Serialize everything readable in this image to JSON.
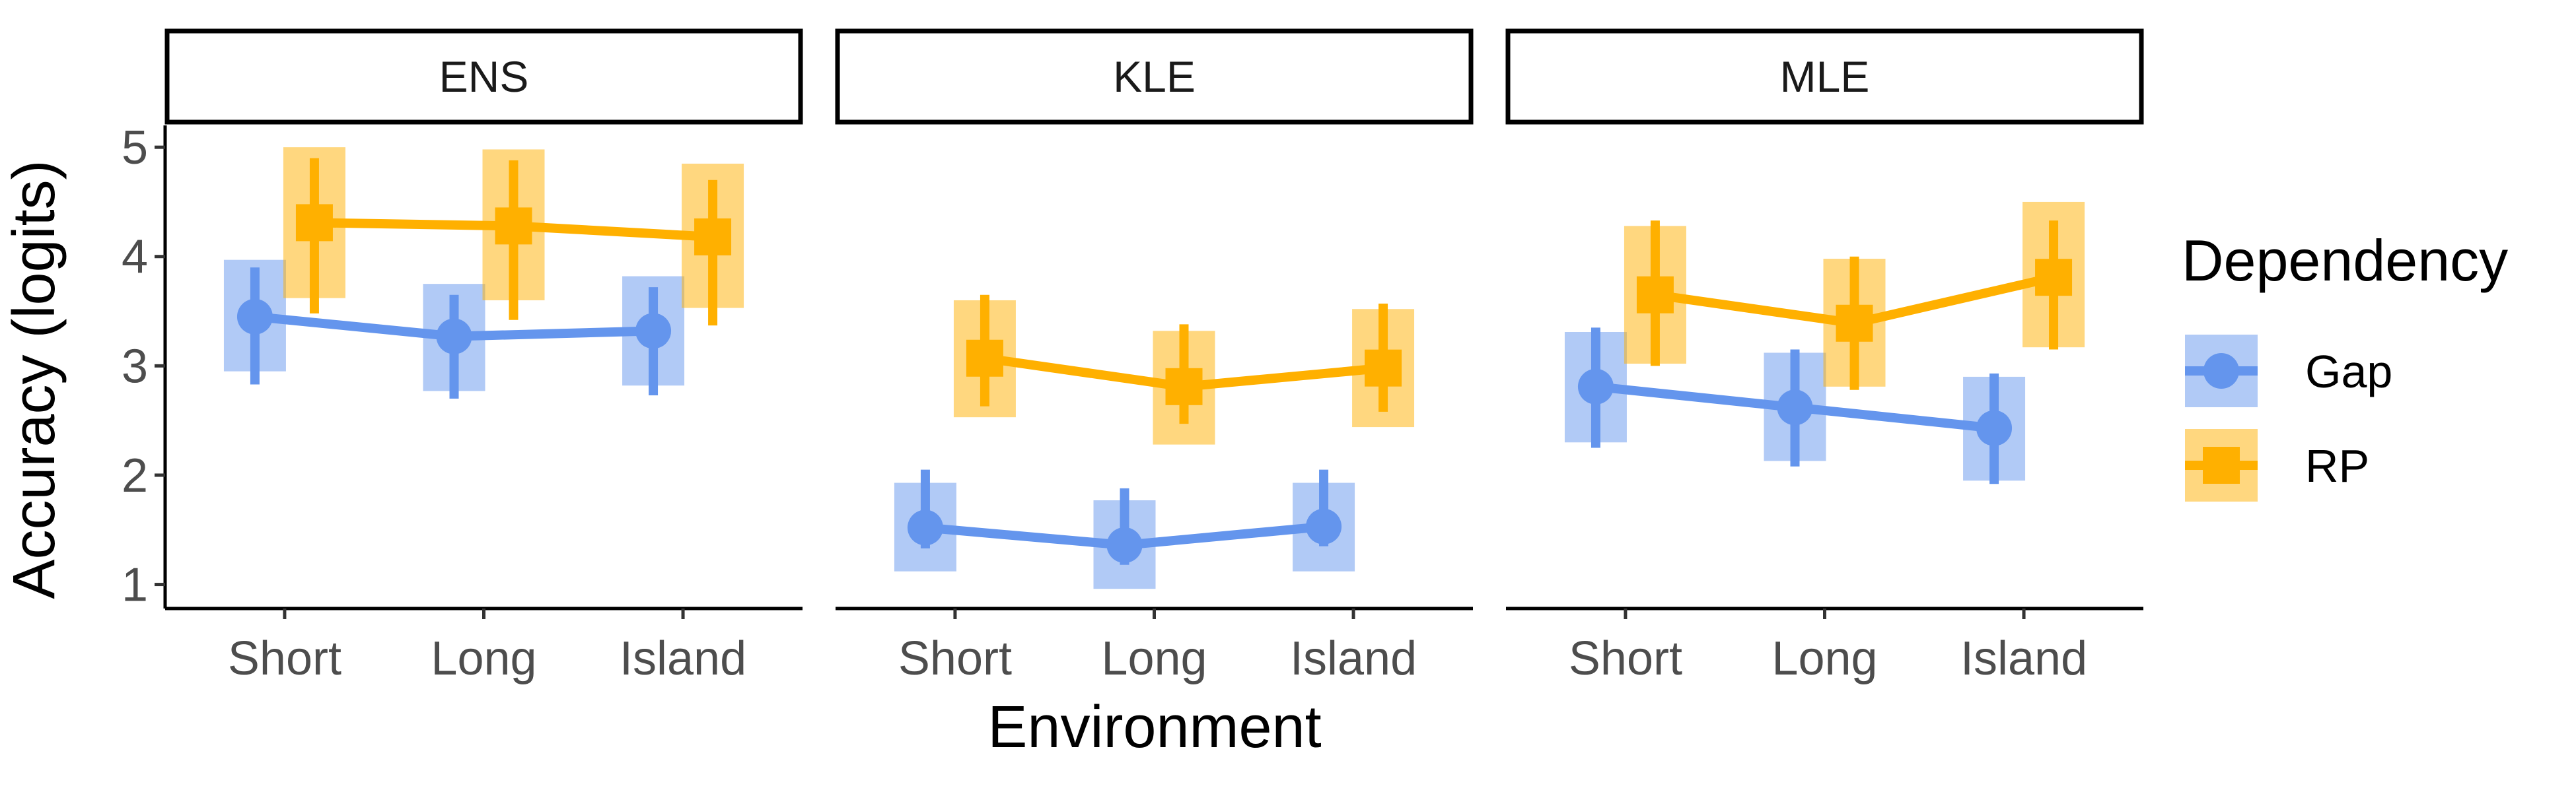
{
  "chart_data": {
    "type": "line",
    "title": "",
    "xlabel": "Environment",
    "ylabel": "Accuracy (logits)",
    "ylim": [
      0.78,
      5.2
    ],
    "yticks": [
      1,
      2,
      3,
      4,
      5
    ],
    "categories": [
      "Short",
      "Long",
      "Island"
    ],
    "legend": {
      "title": "Dependency",
      "position": "right",
      "entries": [
        "Gap",
        "RP"
      ]
    },
    "colors": {
      "Gap": "#6495ED",
      "RP": "#FFB000"
    },
    "panels": [
      {
        "name": "ENS",
        "series": [
          {
            "name": "Gap",
            "values": [
              3.45,
              3.27,
              3.32
            ],
            "lower": [
              2.83,
              2.7,
              2.73
            ],
            "upper": [
              3.9,
              3.65,
              3.72
            ],
            "box_lower": [
              2.95,
              2.77,
              2.82
            ],
            "box_upper": [
              3.97,
              3.75,
              3.82
            ]
          },
          {
            "name": "RP",
            "values": [
              4.31,
              4.28,
              4.18
            ],
            "lower": [
              3.48,
              3.42,
              3.37
            ],
            "upper": [
              4.9,
              4.88,
              4.7
            ],
            "box_lower": [
              3.62,
              3.6,
              3.53
            ],
            "box_upper": [
              5.0,
              4.98,
              4.85
            ]
          }
        ]
      },
      {
        "name": "KLE",
        "series": [
          {
            "name": "Gap",
            "values": [
              1.52,
              1.36,
              1.53
            ],
            "lower": [
              1.33,
              1.18,
              1.35
            ],
            "upper": [
              2.05,
              1.88,
              2.05
            ],
            "box_lower": [
              1.12,
              0.96,
              1.12
            ],
            "box_upper": [
              1.93,
              1.77,
              1.93
            ]
          },
          {
            "name": "RP",
            "values": [
              3.07,
              2.81,
              2.98
            ],
            "lower": [
              2.63,
              2.47,
              2.58
            ],
            "upper": [
              3.65,
              3.38,
              3.57
            ],
            "box_lower": [
              2.53,
              2.28,
              2.44
            ],
            "box_upper": [
              3.6,
              3.32,
              3.52
            ]
          }
        ]
      },
      {
        "name": "MLE",
        "series": [
          {
            "name": "Gap",
            "values": [
              2.81,
              2.62,
              2.43
            ],
            "lower": [
              2.25,
              2.08,
              1.92
            ],
            "upper": [
              3.35,
              3.15,
              2.93
            ],
            "box_lower": [
              2.3,
              2.13,
              1.95
            ],
            "box_upper": [
              3.31,
              3.12,
              2.9
            ]
          },
          {
            "name": "RP",
            "values": [
              3.65,
              3.39,
              3.81
            ],
            "lower": [
              3.0,
              2.78,
              3.15
            ],
            "upper": [
              4.33,
              4.0,
              4.33
            ],
            "box_lower": [
              3.02,
              2.81,
              3.17
            ],
            "box_upper": [
              4.28,
              3.98,
              4.5
            ]
          }
        ]
      }
    ]
  }
}
